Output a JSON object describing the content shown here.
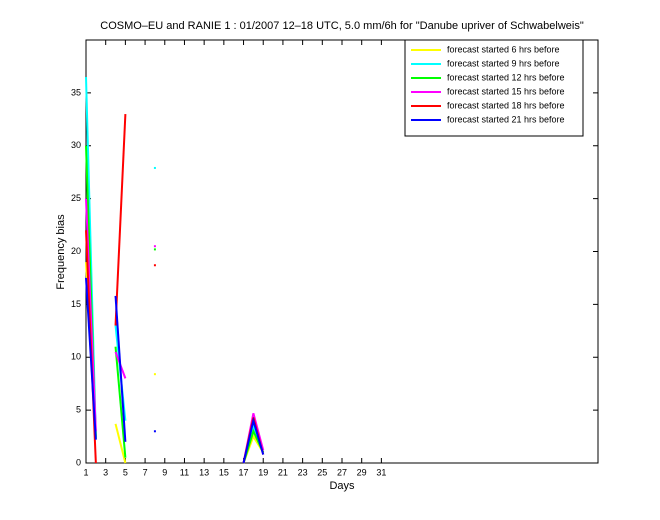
{
  "chart_data": {
    "type": "line",
    "title": "COSMO–EU and RANIE 1 : 01/2007 12–18 UTC, 5.0 mm/6h for \"Danube upriver of Schwabelweis\"",
    "xlabel": "Days",
    "ylabel": "Frequency bias",
    "x": [
      1,
      2,
      3,
      4,
      5,
      6,
      7,
      8,
      9,
      10,
      11,
      12,
      13,
      14,
      15,
      16,
      17,
      18,
      19
    ],
    "series": [
      {
        "name": "forecast started 6 hrs before",
        "color": "#ffff00",
        "values": [
          19,
          2.5,
          null,
          3.7,
          0,
          null,
          null,
          8.4,
          null,
          null,
          null,
          null,
          null,
          null,
          null,
          null,
          0,
          2.5,
          1
        ]
      },
      {
        "name": "forecast started 9 hrs before",
        "color": "#00ffff",
        "values": [
          36.5,
          2.5,
          null,
          13,
          4,
          null,
          null,
          27.9,
          null,
          null,
          null,
          null,
          null,
          null,
          null,
          null,
          0,
          3.5,
          1
        ]
      },
      {
        "name": "forecast started 12 hrs before",
        "color": "#00ff00",
        "values": [
          30,
          2.3,
          null,
          11,
          0.5,
          null,
          null,
          20.2,
          null,
          null,
          null,
          null,
          null,
          null,
          null,
          null,
          0,
          3,
          1
        ]
      },
      {
        "name": "forecast started 15 hrs before",
        "color": "#ff00ff",
        "values": [
          25,
          3,
          null,
          10.5,
          8,
          null,
          null,
          20.5,
          null,
          null,
          null,
          null,
          null,
          null,
          null,
          null,
          0,
          4.7,
          1.2
        ]
      },
      {
        "name": "forecast started 18 hrs before",
        "color": "#ff0000",
        "values": [
          22,
          0,
          null,
          13,
          33,
          null,
          null,
          18.7,
          null,
          null,
          null,
          null,
          null,
          null,
          null,
          null,
          0,
          4.3,
          0.8
        ]
      },
      {
        "name": "forecast started 21 hrs before",
        "color": "#0000ff",
        "values": [
          17.5,
          2.2,
          null,
          15.8,
          2,
          null,
          null,
          3,
          null,
          null,
          null,
          null,
          null,
          null,
          null,
          null,
          0,
          4,
          0.8
        ]
      }
    ],
    "xlim": [
      1,
      53
    ],
    "ylim": [
      0,
      40
    ],
    "xticks": [
      1,
      3,
      5,
      7,
      9,
      11,
      13,
      15,
      17,
      19,
      21,
      23,
      25,
      27,
      29,
      31
    ],
    "yticks": [
      0,
      5,
      10,
      15,
      20,
      25,
      30,
      35
    ],
    "legend": "upper right"
  }
}
